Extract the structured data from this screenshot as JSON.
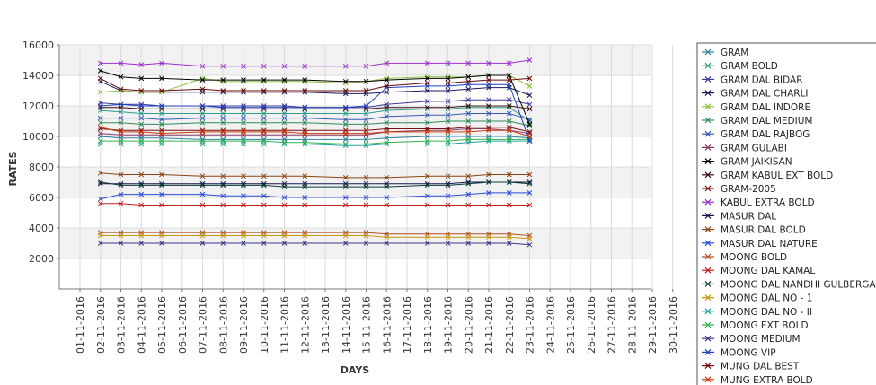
{
  "chart_data": {
    "type": "line",
    "title": "",
    "xlabel": "DAYS",
    "ylabel": "RATES",
    "ylim": [
      0,
      16000
    ],
    "yticks": [
      "2000",
      "4000",
      "6000",
      "8000",
      "10000",
      "12000",
      "14000",
      "16000"
    ],
    "x": [
      "01-11-2016",
      "02-11-2016",
      "03-11-2016",
      "04-11-2016",
      "05-11-2016",
      "06-11-2016",
      "07-11-2016",
      "08-11-2016",
      "09-11-2016",
      "10-11-2016",
      "11-11-2016",
      "12-11-2016",
      "13-11-2016",
      "14-11-2016",
      "15-11-2016",
      "16-11-2016",
      "17-11-2016",
      "18-11-2016",
      "19-11-2016",
      "20-11-2016",
      "21-11-2016",
      "22-11-2016",
      "23-11-2016",
      "24-11-2016",
      "25-11-2016",
      "26-11-2016",
      "27-11-2016",
      "28-11-2016",
      "29-11-2016",
      "30-11-2016"
    ],
    "grid": true,
    "legend_position": "right",
    "series": [
      {
        "name": "GRAM",
        "color": "#2f7ea0",
        "values": [
          null,
          10000,
          9900,
          9900,
          9900,
          null,
          9800,
          9800,
          9800,
          9800,
          9800,
          9800,
          null,
          9800,
          9800,
          9900,
          null,
          10000,
          10000,
          10000,
          10000,
          10000,
          9900,
          null,
          null,
          null,
          null,
          null,
          null,
          null
        ]
      },
      {
        "name": "GRAM BOLD",
        "color": "#2e9e8a",
        "values": [
          null,
          11700,
          11600,
          11500,
          11500,
          null,
          11500,
          11500,
          11500,
          11500,
          11500,
          11500,
          null,
          11500,
          11500,
          11700,
          null,
          11800,
          11800,
          11900,
          11900,
          11900,
          11000,
          null,
          null,
          null,
          null,
          null,
          null,
          null
        ]
      },
      {
        "name": "GRAM DAL BIDAR",
        "color": "#3a3a9a",
        "values": [
          null,
          12200,
          12100,
          12100,
          12000,
          null,
          12000,
          12000,
          12000,
          12000,
          12000,
          11900,
          null,
          11900,
          11900,
          12100,
          null,
          12300,
          12300,
          12400,
          12400,
          12400,
          12100,
          null,
          null,
          null,
          null,
          null,
          null,
          null
        ]
      },
      {
        "name": "GRAM DAL CHARLI",
        "color": "#1a1a60",
        "values": [
          null,
          13600,
          13000,
          12900,
          12900,
          null,
          12900,
          12900,
          12900,
          12900,
          12900,
          12900,
          null,
          12800,
          12800,
          12900,
          null,
          13000,
          13000,
          13100,
          13200,
          13200,
          12700,
          null,
          null,
          null,
          null,
          null,
          null,
          null
        ]
      },
      {
        "name": "GRAM DAL INDORE",
        "color": "#8cc43a",
        "values": [
          null,
          12900,
          13000,
          12900,
          12900,
          null,
          13800,
          13600,
          13600,
          13600,
          13600,
          13600,
          null,
          13500,
          13600,
          13800,
          null,
          13900,
          13900,
          13900,
          14000,
          14000,
          13300,
          null,
          null,
          null,
          null,
          null,
          null,
          null
        ]
      },
      {
        "name": "GRAM DAL MEDIUM",
        "color": "#2e8b57",
        "values": [
          null,
          10900,
          10900,
          10800,
          10800,
          null,
          10900,
          10900,
          10900,
          10900,
          10900,
          10900,
          null,
          10800,
          10800,
          10900,
          null,
          10900,
          11000,
          11000,
          11000,
          11000,
          10700,
          null,
          null,
          null,
          null,
          null,
          null,
          null
        ]
      },
      {
        "name": "GRAM DAL RAJBOG",
        "color": "#3c5ab4",
        "values": [
          null,
          11200,
          11200,
          11200,
          11100,
          null,
          11200,
          11200,
          11200,
          11200,
          11200,
          11200,
          null,
          11100,
          11100,
          11300,
          null,
          11400,
          11400,
          11500,
          11500,
          11500,
          11100,
          null,
          null,
          null,
          null,
          null,
          null,
          null
        ]
      },
      {
        "name": "GRAM GULABI",
        "color": "#8b3a62",
        "values": [
          null,
          10200,
          10100,
          10100,
          10100,
          null,
          10100,
          10100,
          10100,
          10100,
          10100,
          10100,
          null,
          10100,
          10100,
          10300,
          null,
          10400,
          10400,
          10500,
          10500,
          10400,
          10200,
          null,
          null,
          null,
          null,
          null,
          null,
          null
        ]
      },
      {
        "name": "GRAM JAIKISAN",
        "color": "#000000",
        "values": [
          null,
          14300,
          13900,
          13800,
          13800,
          null,
          13700,
          13700,
          13700,
          13700,
          13700,
          13700,
          null,
          13600,
          13600,
          13700,
          null,
          13800,
          13800,
          13900,
          14000,
          14000,
          10800,
          null,
          null,
          null,
          null,
          null,
          null,
          null
        ]
      },
      {
        "name": "GRAM KABUL EXT BOLD",
        "color": "#3d1010",
        "values": [
          null,
          11900,
          11900,
          11800,
          11800,
          null,
          11800,
          11800,
          11800,
          11800,
          11800,
          11800,
          null,
          11800,
          11800,
          11900,
          null,
          11900,
          11900,
          12000,
          12000,
          12000,
          11800,
          null,
          null,
          null,
          null,
          null,
          null,
          null
        ]
      },
      {
        "name": "GRAM-2005",
        "color": "#7a1010",
        "values": [
          null,
          10500,
          10400,
          10400,
          10400,
          null,
          10400,
          10400,
          10400,
          10400,
          10400,
          10400,
          null,
          10400,
          10400,
          10500,
          null,
          10500,
          10500,
          10600,
          10600,
          10600,
          10300,
          null,
          null,
          null,
          null,
          null,
          null,
          null
        ]
      },
      {
        "name": "KABUL EXTRA BOLD",
        "color": "#9b30c8",
        "values": [
          null,
          14800,
          14800,
          14700,
          14800,
          null,
          14600,
          14600,
          14600,
          14600,
          14600,
          14600,
          null,
          14600,
          14600,
          14800,
          null,
          14800,
          14800,
          14800,
          14800,
          14800,
          15000,
          null,
          null,
          null,
          null,
          null,
          null,
          null
        ]
      },
      {
        "name": "MASUR DAL",
        "color": "#14144a",
        "values": [
          null,
          6900,
          6900,
          6900,
          6900,
          null,
          6900,
          6900,
          6900,
          6900,
          6900,
          6900,
          null,
          6900,
          6900,
          6900,
          null,
          6900,
          6900,
          7000,
          7000,
          7000,
          7000,
          null,
          null,
          null,
          null,
          null,
          null,
          null
        ]
      },
      {
        "name": "MASUR DAL BOLD",
        "color": "#8b4513",
        "values": [
          null,
          7600,
          7500,
          7500,
          7500,
          null,
          7400,
          7400,
          7400,
          7400,
          7400,
          7400,
          null,
          7300,
          7300,
          7300,
          null,
          7400,
          7400,
          7400,
          7500,
          7500,
          7500,
          null,
          null,
          null,
          null,
          null,
          null,
          null
        ]
      },
      {
        "name": "MASUR DAL NATURE",
        "color": "#2a4bd7",
        "values": [
          null,
          5900,
          6200,
          6200,
          6200,
          null,
          6200,
          6100,
          6100,
          6100,
          6000,
          6000,
          null,
          6000,
          6000,
          6000,
          null,
          6100,
          6100,
          6200,
          6300,
          6300,
          6300,
          null,
          null,
          null,
          null,
          null,
          null,
          null
        ]
      },
      {
        "name": "MOONG BOLD",
        "color": "#b05020",
        "values": [
          null,
          3700,
          3700,
          3700,
          3700,
          null,
          3700,
          3700,
          3700,
          3700,
          3700,
          3700,
          null,
          3700,
          3700,
          3600,
          null,
          3600,
          3600,
          3600,
          3600,
          3600,
          3500,
          null,
          null,
          null,
          null,
          null,
          null,
          null
        ]
      },
      {
        "name": "MOONG DAL KAMAL",
        "color": "#c02020",
        "values": [
          null,
          5600,
          5600,
          5500,
          5500,
          null,
          5500,
          5500,
          5500,
          5500,
          5500,
          5500,
          null,
          5500,
          5500,
          5500,
          null,
          5500,
          5500,
          5500,
          5500,
          5500,
          5500,
          null,
          null,
          null,
          null,
          null,
          null,
          null
        ]
      },
      {
        "name": "MOONG DAL NANDHI GULBERGA",
        "color": "#0a3a3a",
        "values": [
          null,
          7000,
          6800,
          6800,
          6800,
          null,
          6800,
          6800,
          6800,
          6800,
          6700,
          6700,
          null,
          6700,
          6700,
          6700,
          null,
          6800,
          6800,
          6900,
          7000,
          7000,
          6900,
          null,
          null,
          null,
          null,
          null,
          null,
          null
        ]
      },
      {
        "name": "MOONG DAL NO - 1",
        "color": "#c8960a",
        "values": [
          null,
          3500,
          3500,
          3500,
          3500,
          null,
          3500,
          3500,
          3500,
          3500,
          3500,
          3500,
          null,
          3500,
          3500,
          3400,
          null,
          3400,
          3400,
          3400,
          3400,
          3400,
          3300,
          null,
          null,
          null,
          null,
          null,
          null,
          null
        ]
      },
      {
        "name": "MOONG DAL NO - II",
        "color": "#20a0a0",
        "values": [
          null,
          9500,
          9500,
          9500,
          9500,
          null,
          9500,
          9500,
          9500,
          9500,
          9500,
          9500,
          null,
          9400,
          9400,
          9500,
          null,
          9500,
          9500,
          9600,
          9700,
          9700,
          9700,
          null,
          null,
          null,
          null,
          null,
          null,
          null
        ]
      },
      {
        "name": "MOONG EXT BOLD",
        "color": "#30b050",
        "values": [
          null,
          9700,
          9700,
          9700,
          9700,
          null,
          9700,
          9700,
          9700,
          9700,
          9600,
          9600,
          null,
          9500,
          9500,
          9600,
          null,
          9700,
          9700,
          9800,
          9800,
          9800,
          9800,
          null,
          null,
          null,
          null,
          null,
          null,
          null
        ]
      },
      {
        "name": "MOONG MEDIUM",
        "color": "#3a3a88",
        "values": [
          null,
          3000,
          3000,
          3000,
          3000,
          null,
          3000,
          3000,
          3000,
          3000,
          3000,
          3000,
          null,
          3000,
          3000,
          3000,
          null,
          3000,
          3000,
          3000,
          3000,
          3000,
          2900,
          null,
          null,
          null,
          null,
          null,
          null,
          null
        ]
      },
      {
        "name": "MOONG VIP",
        "color": "#2040c0",
        "values": [
          null,
          12000,
          12100,
          12000,
          12000,
          null,
          12000,
          11900,
          11900,
          11900,
          11900,
          11900,
          null,
          11900,
          12000,
          13200,
          null,
          13300,
          13300,
          13400,
          13400,
          13400,
          9700,
          null,
          null,
          null,
          null,
          null,
          null,
          null
        ]
      },
      {
        "name": "MUNG DAL BEST",
        "color": "#6a0a0a",
        "values": [
          null,
          13800,
          13100,
          13000,
          13000,
          null,
          13100,
          13000,
          13000,
          13000,
          13000,
          13000,
          null,
          13000,
          13000,
          13300,
          null,
          13500,
          13500,
          13600,
          13700,
          13700,
          13800,
          null,
          null,
          null,
          null,
          null,
          null,
          null
        ]
      },
      {
        "name": "MUNG EXTRA BOLD",
        "color": "#c83c0a",
        "values": [
          null,
          10600,
          10300,
          10300,
          10200,
          null,
          10300,
          10300,
          10300,
          10300,
          10300,
          10200,
          null,
          10200,
          10200,
          10300,
          null,
          10300,
          10300,
          10300,
          10400,
          10400,
          10000,
          null,
          null,
          null,
          null,
          null,
          null,
          null
        ]
      }
    ]
  }
}
